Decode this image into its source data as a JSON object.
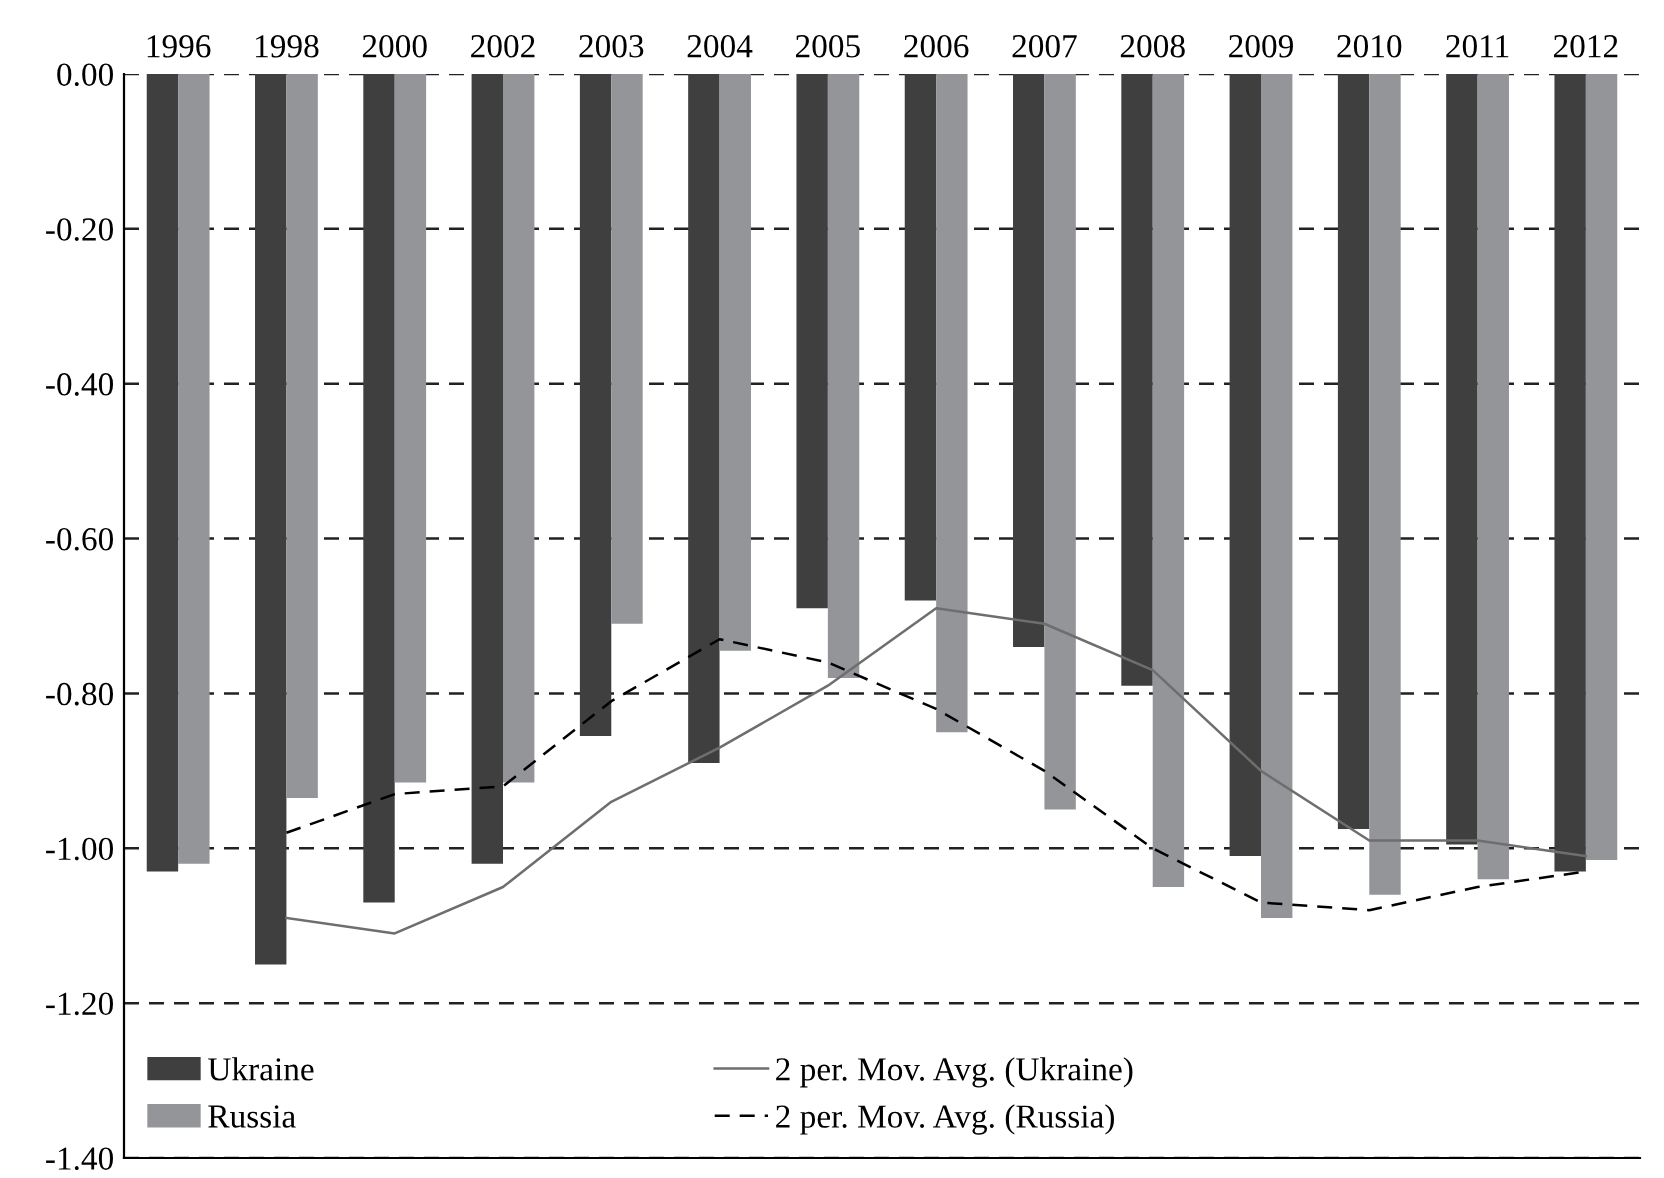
{
  "chart_data": {
    "type": "bar",
    "categories": [
      "1996",
      "1998",
      "2000",
      "2002",
      "2003",
      "2004",
      "2005",
      "2006",
      "2007",
      "2008",
      "2009",
      "2010",
      "2011",
      "2012"
    ],
    "series": [
      {
        "name": "Ukraine",
        "color": "#3f3f3f",
        "values": [
          -1.03,
          -1.15,
          -1.07,
          -1.02,
          -0.855,
          -0.89,
          -0.69,
          -0.68,
          -0.74,
          -0.79,
          -1.01,
          -0.975,
          -0.995,
          -1.03
        ]
      },
      {
        "name": "Russia",
        "color": "#949599",
        "values": [
          -1.02,
          -0.935,
          -0.915,
          -0.915,
          -0.71,
          -0.745,
          -0.78,
          -0.85,
          -0.95,
          -1.05,
          -1.09,
          -1.06,
          -1.04,
          -1.015
        ]
      },
      {
        "name": "2 per. Mov. Avg. (Ukraine)",
        "type": "line",
        "line_style": "solid",
        "color": "#6e6e6e",
        "values": [
          null,
          -1.09,
          -1.11,
          -1.05,
          -0.94,
          -0.87,
          -0.79,
          -0.69,
          -0.71,
          -0.77,
          -0.9,
          -0.99,
          -0.99,
          -1.01
        ]
      },
      {
        "name": "2 per. Mov. Avg. (Russia)",
        "type": "line",
        "line_style": "dashed",
        "color": "#000000",
        "values": [
          null,
          -0.98,
          -0.93,
          -0.92,
          -0.81,
          -0.73,
          -0.76,
          -0.82,
          -0.9,
          -1.0,
          -1.07,
          -1.08,
          -1.05,
          -1.03
        ]
      }
    ],
    "ylim": [
      -1.4,
      0
    ],
    "yticks": [
      {
        "value": 0,
        "label": "0.00"
      },
      {
        "value": -0.2,
        "label": "-0.20"
      },
      {
        "value": -0.4,
        "label": "-0.40"
      },
      {
        "value": -0.6,
        "label": "-0.60"
      },
      {
        "value": -0.8,
        "label": "-0.80"
      },
      {
        "value": -1.0,
        "label": "-1.00"
      },
      {
        "value": -1.2,
        "label": "-1.20"
      },
      {
        "value": -1.4,
        "label": "-1.40"
      }
    ],
    "grid": "y",
    "legend": "bottom"
  }
}
